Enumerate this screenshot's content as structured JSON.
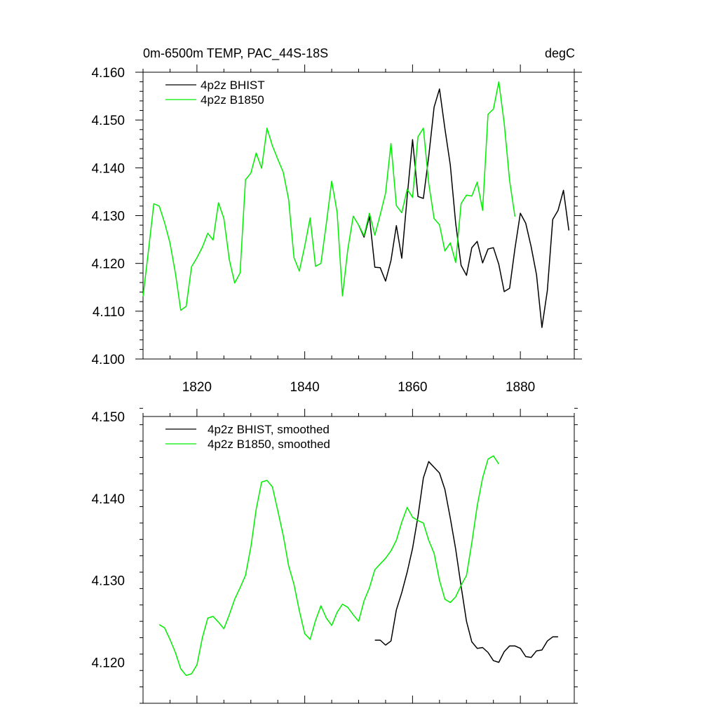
{
  "chart_data": [
    {
      "type": "line",
      "title": "0m-6500m TEMP, PAC_44S-18S",
      "units": "degC",
      "xlim": [
        1810,
        1890
      ],
      "ylim": [
        4.1,
        4.16
      ],
      "xticks": [
        1820,
        1840,
        1860,
        1880
      ],
      "xtick_labels": [
        "1820",
        "1840",
        "1860",
        "1880"
      ],
      "yticks": [
        4.1,
        4.11,
        4.12,
        4.13,
        4.14,
        4.15,
        4.16
      ],
      "ytick_labels": [
        "4.100",
        "4.110",
        "4.120",
        "4.130",
        "4.140",
        "4.150",
        "4.160"
      ],
      "series": [
        {
          "name": "4p2z BHIST",
          "color": "#000000",
          "x": [
            1850,
            1851,
            1852,
            1853,
            1854,
            1855,
            1856,
            1857,
            1858,
            1859,
            1860,
            1861,
            1862,
            1863,
            1864,
            1865,
            1866,
            1867,
            1868,
            1869,
            1870,
            1871,
            1872,
            1873,
            1874,
            1875,
            1876,
            1877,
            1878,
            1879,
            1880,
            1881,
            1882,
            1883,
            1884,
            1885,
            1886,
            1887,
            1888,
            1889
          ],
          "values": [
            4.128,
            4.1255,
            4.1298,
            4.1192,
            4.1191,
            4.1163,
            4.1206,
            4.1279,
            4.1211,
            4.1339,
            4.1459,
            4.134,
            4.1336,
            4.1423,
            4.1527,
            4.1565,
            4.1482,
            4.1406,
            4.1284,
            4.1196,
            4.1175,
            4.1233,
            4.1246,
            4.1201,
            4.123,
            4.1233,
            4.1198,
            4.1141,
            4.1148,
            4.1231,
            4.1305,
            4.1284,
            4.1235,
            4.1176,
            4.1066,
            4.1143,
            4.1292,
            4.1311,
            4.1353,
            4.1269
          ]
        },
        {
          "name": "4p2z B1850",
          "color": "#00ee00",
          "x": [
            1810,
            1811,
            1812,
            1813,
            1814,
            1815,
            1816,
            1817,
            1818,
            1819,
            1820,
            1821,
            1822,
            1823,
            1824,
            1825,
            1826,
            1827,
            1828,
            1829,
            1830,
            1831,
            1832,
            1833,
            1834,
            1835,
            1836,
            1837,
            1838,
            1839,
            1840,
            1841,
            1842,
            1843,
            1844,
            1845,
            1846,
            1847,
            1848,
            1849,
            1850,
            1851,
            1852,
            1853,
            1854,
            1855,
            1856,
            1857,
            1858,
            1859,
            1860,
            1861,
            1862,
            1863,
            1864,
            1865,
            1866,
            1867,
            1868,
            1869,
            1870,
            1871,
            1872,
            1873,
            1874,
            1875,
            1876,
            1877,
            1878,
            1879
          ],
          "values": [
            4.1131,
            4.1226,
            4.1325,
            4.132,
            4.1285,
            4.1243,
            4.118,
            4.1102,
            4.111,
            4.1193,
            4.1212,
            4.1234,
            4.1263,
            4.1249,
            4.1327,
            4.1294,
            4.1208,
            4.1159,
            4.118,
            4.1375,
            4.1389,
            4.1431,
            4.1399,
            4.1483,
            4.1446,
            4.1418,
            4.1391,
            4.1334,
            4.1212,
            4.1184,
            4.1236,
            4.1295,
            4.1194,
            4.12,
            4.1283,
            4.1372,
            4.1307,
            4.1132,
            4.123,
            4.1299,
            4.128,
            4.1258,
            4.1305,
            4.1259,
            4.1302,
            4.1347,
            4.1451,
            4.1321,
            4.1306,
            4.1355,
            4.1338,
            4.1465,
            4.1483,
            4.1368,
            4.1294,
            4.1281,
            4.1226,
            4.1243,
            4.1202,
            4.1325,
            4.1343,
            4.1341,
            4.137,
            4.1311,
            4.1512,
            4.1523,
            4.158,
            4.1493,
            4.1373,
            4.1298
          ]
        }
      ]
    },
    {
      "type": "line",
      "title": "",
      "xlim": [
        1810,
        1890
      ],
      "ylim": [
        4.115,
        4.15
      ],
      "xticks": [
        1820,
        1840,
        1860,
        1880
      ],
      "xtick_labels": [],
      "yticks": [
        4.12,
        4.13,
        4.14,
        4.15
      ],
      "ytick_labels": [
        "4.120",
        "4.130",
        "4.140",
        "4.150"
      ],
      "series": [
        {
          "name": "4p2z BHIST, smoothed",
          "color": "#000000",
          "x": [
            1853,
            1854,
            1855,
            1856,
            1857,
            1858,
            1859,
            1860,
            1861,
            1862,
            1863,
            1864,
            1865,
            1866,
            1867,
            1868,
            1869,
            1870,
            1871,
            1872,
            1873,
            1874,
            1875,
            1876,
            1877,
            1878,
            1879,
            1880,
            1881,
            1882,
            1883,
            1884,
            1885,
            1886,
            1887
          ],
          "values": [
            4.1227,
            4.1227,
            4.1221,
            4.1226,
            4.1264,
            4.1285,
            4.131,
            4.1339,
            4.1378,
            4.1425,
            4.1445,
            4.1438,
            4.1431,
            4.1411,
            4.1376,
            4.1338,
            4.1293,
            4.125,
            4.1225,
            4.1217,
            4.1218,
            4.1212,
            4.1202,
            4.12,
            4.1213,
            4.122,
            4.122,
            4.1217,
            4.1207,
            4.1206,
            4.1214,
            4.1215,
            4.1226,
            4.1231,
            4.1231
          ]
        },
        {
          "name": "4p2z B1850, smoothed",
          "color": "#00ee00",
          "x": [
            1813,
            1814,
            1815,
            1816,
            1817,
            1818,
            1819,
            1820,
            1821,
            1822,
            1823,
            1824,
            1825,
            1826,
            1827,
            1828,
            1829,
            1830,
            1831,
            1832,
            1833,
            1834,
            1835,
            1836,
            1837,
            1838,
            1839,
            1840,
            1841,
            1842,
            1843,
            1844,
            1845,
            1846,
            1847,
            1848,
            1849,
            1850,
            1851,
            1852,
            1853,
            1854,
            1855,
            1856,
            1857,
            1858,
            1859,
            1860,
            1861,
            1862,
            1863,
            1864,
            1865,
            1866,
            1867,
            1868,
            1869,
            1870,
            1871,
            1872,
            1873,
            1874,
            1875,
            1876
          ],
          "values": [
            4.1246,
            4.1242,
            4.1228,
            4.1212,
            4.1192,
            4.1184,
            4.1186,
            4.1197,
            4.123,
            4.1254,
            4.1256,
            4.1249,
            4.1241,
            4.1258,
            4.1277,
            4.1291,
            4.1306,
            4.1341,
            4.1387,
            4.142,
            4.1422,
            4.1414,
            4.1385,
            4.1355,
            4.1318,
            4.1295,
            4.1263,
            4.1235,
            4.1228,
            4.1251,
            4.1269,
            4.1254,
            4.1245,
            4.1261,
            4.1271,
            4.1267,
            4.1258,
            4.125,
            4.1275,
            4.1291,
            4.1313,
            4.132,
            4.1327,
            4.1336,
            4.1349,
            4.1371,
            4.1389,
            4.1377,
            4.1373,
            4.137,
            4.1349,
            4.1333,
            4.13,
            4.1277,
            4.1273,
            4.128,
            4.1294,
            4.1306,
            4.1346,
            4.1391,
            4.1425,
            4.1448,
            4.1452,
            4.1442
          ]
        }
      ]
    }
  ]
}
